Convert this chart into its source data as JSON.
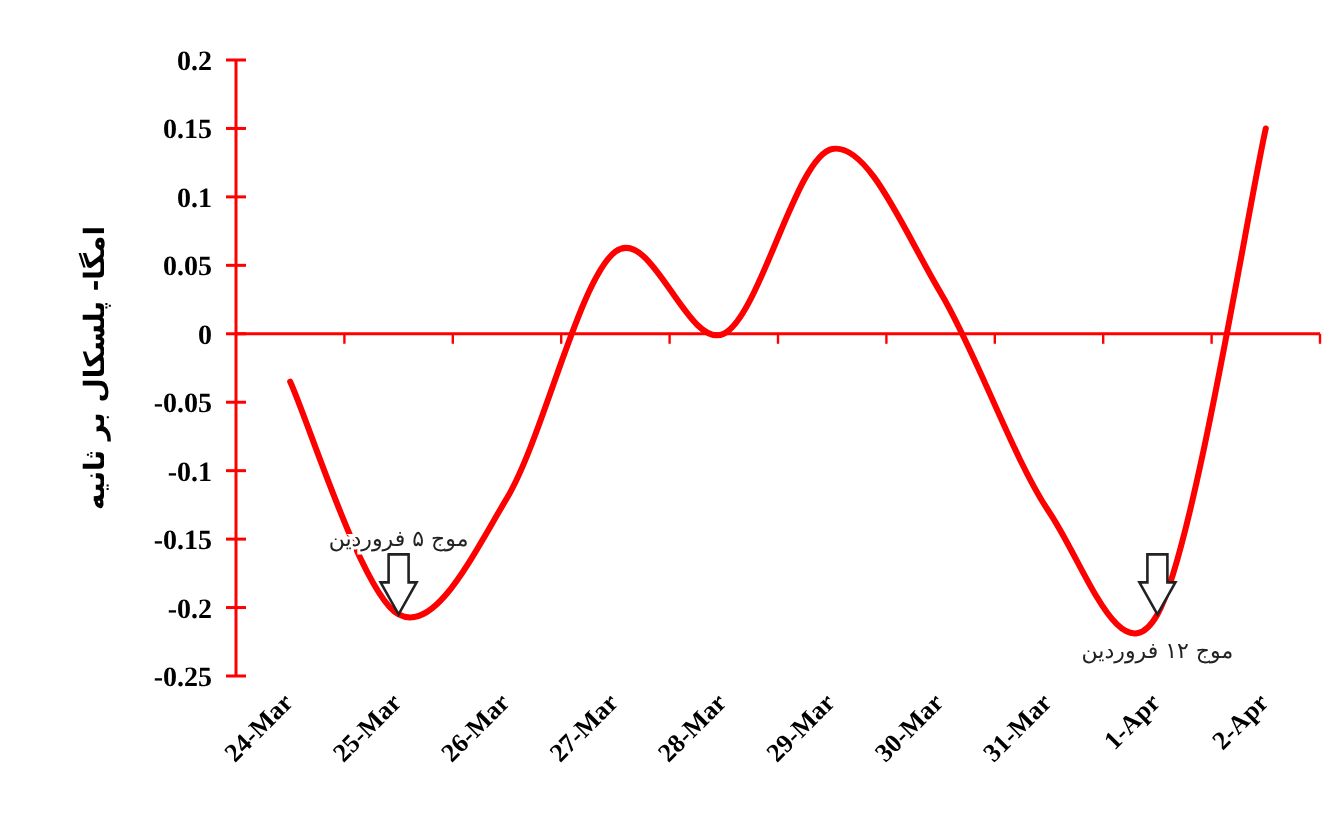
{
  "chart_data": {
    "type": "line",
    "ylabel": "امگا- پلسکال بر ثانیه",
    "categories": [
      "24-Mar",
      "25-Mar",
      "26-Mar",
      "27-Mar",
      "28-Mar",
      "29-Mar",
      "30-Mar",
      "31-Mar",
      "1-Apr",
      "2-Apr"
    ],
    "series": [
      {
        "color": "#ff0000",
        "values": [
          -0.035,
          -0.205,
          -0.12,
          0.06,
          0.0,
          0.135,
          0.03,
          -0.13,
          -0.205,
          0.15
        ]
      }
    ],
    "ref_lines": [
      {
        "axis": "y",
        "value": 0,
        "color": "#ff0000"
      }
    ],
    "ylim": [
      -0.25,
      0.2
    ],
    "yticks": [
      0.2,
      0.15,
      0.1,
      0.05,
      0,
      -0.05,
      -0.1,
      -0.15,
      -0.2,
      -0.25
    ],
    "annotations": [
      {
        "text": "موج ۵ فروردین",
        "x": "25-Mar",
        "y": -0.205
      },
      {
        "text": "موج ۱۲ فروردین",
        "x": "1-Apr",
        "y": -0.205
      }
    ]
  }
}
